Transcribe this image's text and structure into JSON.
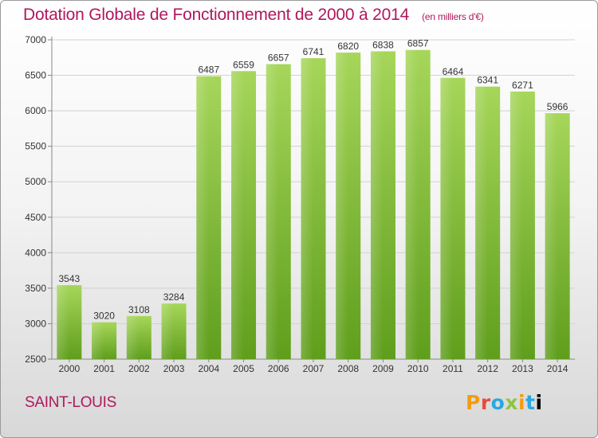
{
  "header": {
    "title": "Dotation Globale de Fonctionnement de 2000 à 2014",
    "unit": "(en milliers d'€)"
  },
  "footer": {
    "commune": "SAINT-LOUIS",
    "logo": "Proxiti"
  },
  "colors": {
    "bar_light": "#a6d65a",
    "bar_dark": "#5f9e1c",
    "title": "#b0185e"
  },
  "chart_data": {
    "type": "bar",
    "title": "Dotation Globale de Fonctionnement de 2000 à 2014",
    "subtitle": "(en milliers d'€)",
    "categories": [
      "2000",
      "2001",
      "2002",
      "2003",
      "2004",
      "2005",
      "2006",
      "2007",
      "2008",
      "2009",
      "2010",
      "2011",
      "2012",
      "2013",
      "2014"
    ],
    "values": [
      3543,
      3020,
      3108,
      3284,
      6487,
      6559,
      6657,
      6741,
      6820,
      6838,
      6857,
      6464,
      6341,
      6271,
      5966
    ],
    "ylim": [
      2500,
      7000
    ],
    "yticks": [
      2500,
      3000,
      3500,
      4000,
      4500,
      5000,
      5500,
      6000,
      6500,
      7000
    ],
    "grid": true,
    "xlabel": "",
    "ylabel": ""
  }
}
